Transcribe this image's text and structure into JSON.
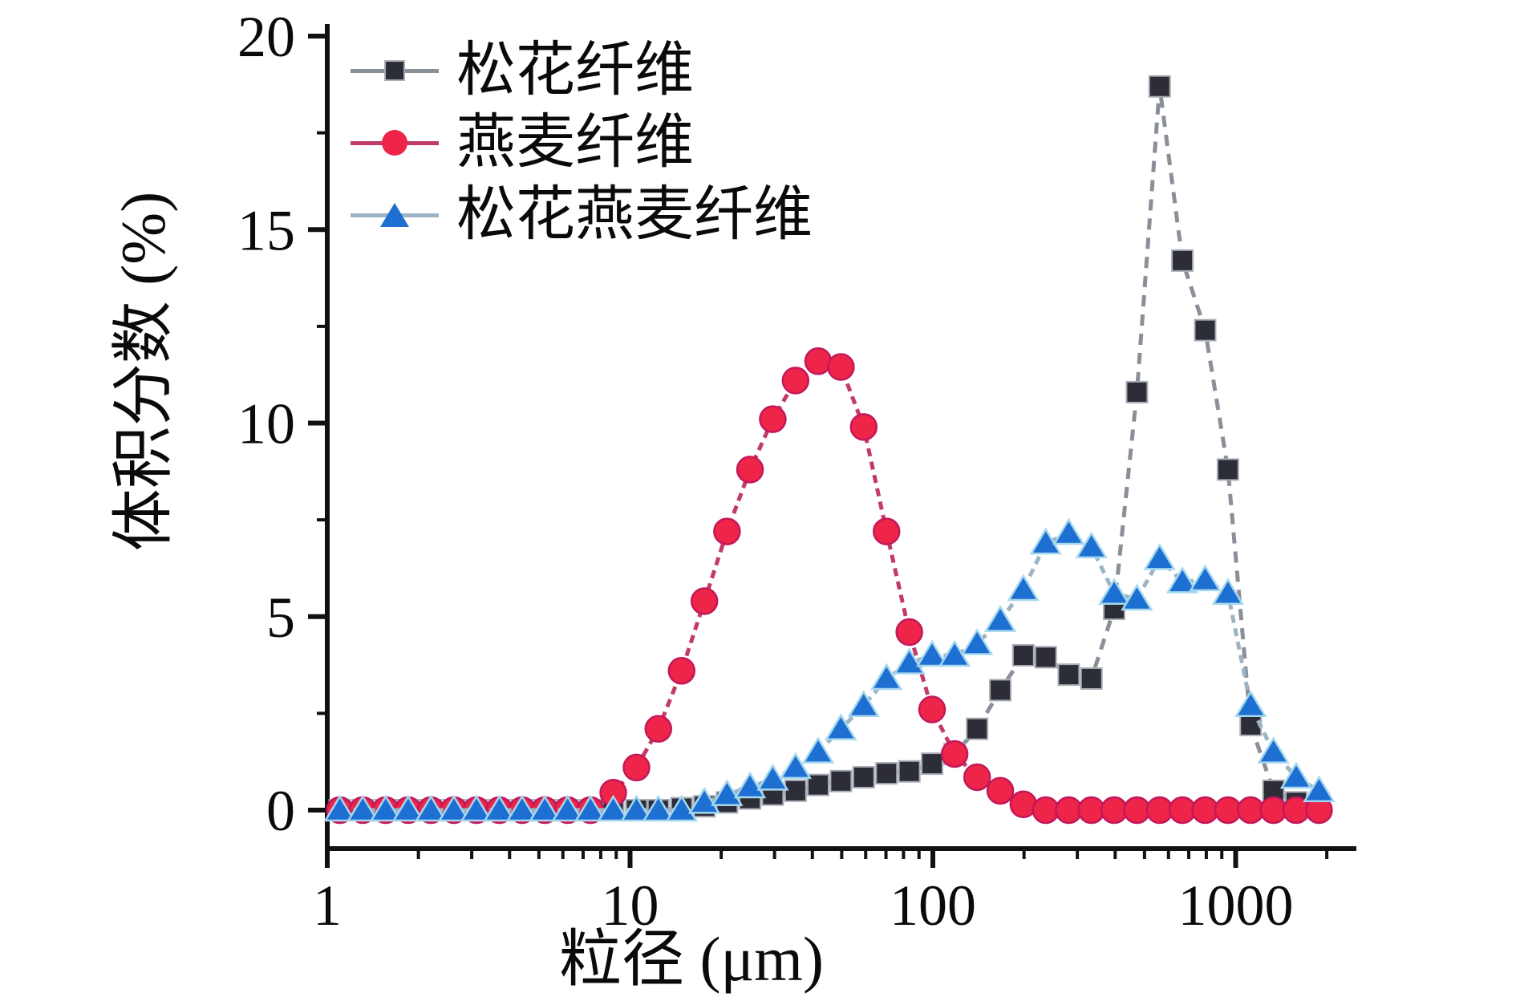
{
  "figure": {
    "background": "#ffffff",
    "legend": {
      "items": [
        {
          "label": "松花纤维"
        },
        {
          "label": "燕麦纤维"
        },
        {
          "label": "松花燕麦纤维"
        }
      ]
    }
  },
  "chart_data": {
    "type": "line",
    "title": "",
    "xlabel": "粒径 (μm)",
    "ylabel": "体积分数 (%)",
    "x_scale": "log",
    "xlim": [
      1,
      2500
    ],
    "ylim": [
      -1,
      20
    ],
    "x_major_ticks": [
      1,
      10,
      100,
      1000
    ],
    "x_major_tick_labels": [
      "1",
      "10",
      "100",
      "1000"
    ],
    "y_major_ticks": [
      0,
      5,
      10,
      15,
      20
    ],
    "y_major_tick_labels": [
      "0",
      "5",
      "10",
      "15",
      "20"
    ],
    "y_minor_ticks": [
      2.5,
      7.5,
      12.5,
      17.5
    ],
    "grid": false,
    "legend_position": "upper-left-inside",
    "x": [
      1.1,
      1.31,
      1.56,
      1.85,
      2.2,
      2.62,
      3.11,
      3.7,
      4.4,
      5.23,
      6.22,
      7.4,
      8.8,
      10.5,
      12.4,
      14.8,
      17.6,
      20.9,
      24.9,
      29.6,
      35.2,
      41.8,
      49.7,
      59.1,
      70.3,
      83.6,
      99.4,
      118,
      140,
      167,
      199,
      236,
      281,
      334,
      397,
      472,
      561,
      667,
      793,
      943,
      1121,
      1333,
      1585,
      1885
    ],
    "series": [
      {
        "name": "松花纤维",
        "marker": "square",
        "marker_color": "#2d2d38",
        "marker_stroke": "#a9aeb6",
        "line_color": "#8a8f98",
        "line_dash": "14 10",
        "values": [
          0,
          0,
          0,
          0,
          0,
          0,
          0,
          0,
          0,
          0,
          0,
          0,
          0,
          0,
          0,
          0.05,
          0.1,
          0.2,
          0.3,
          0.4,
          0.5,
          0.65,
          0.75,
          0.85,
          0.95,
          1.0,
          1.2,
          1.45,
          2.1,
          3.1,
          4.0,
          3.95,
          3.5,
          3.4,
          5.2,
          10.8,
          18.7,
          14.2,
          12.4,
          8.8,
          2.2,
          0.5,
          0.2,
          0.15
        ]
      },
      {
        "name": "燕麦纤维",
        "marker": "circle",
        "marker_color": "#ee2448",
        "marker_stroke": "#c2185b",
        "line_color": "#c23b66",
        "line_dash": "10 7",
        "values": [
          0,
          0,
          0,
          0,
          0,
          0,
          0,
          0,
          0,
          0,
          0,
          0,
          0.45,
          1.1,
          2.1,
          3.6,
          5.4,
          7.2,
          8.8,
          10.1,
          11.1,
          11.6,
          11.45,
          9.9,
          7.2,
          4.6,
          2.6,
          1.45,
          0.85,
          0.5,
          0.15,
          0,
          0,
          0,
          0,
          0,
          0,
          0,
          0,
          0,
          0,
          0,
          0,
          0
        ]
      },
      {
        "name": "松花燕麦纤维",
        "marker": "triangle",
        "marker_color": "#1e6fd2",
        "marker_stroke": "#a5d8ef",
        "line_color": "#9cb4c4",
        "line_dash": "10 7",
        "values": [
          0,
          0,
          0,
          0,
          0,
          0,
          0,
          0,
          0,
          0,
          0,
          0,
          0,
          0,
          0,
          0,
          0.2,
          0.4,
          0.6,
          0.8,
          1.1,
          1.5,
          2.1,
          2.7,
          3.4,
          3.8,
          4.0,
          4.0,
          4.3,
          4.9,
          5.7,
          6.9,
          7.15,
          6.8,
          5.6,
          5.45,
          6.5,
          5.9,
          5.95,
          5.6,
          2.7,
          1.5,
          0.85,
          0.5
        ]
      }
    ]
  }
}
